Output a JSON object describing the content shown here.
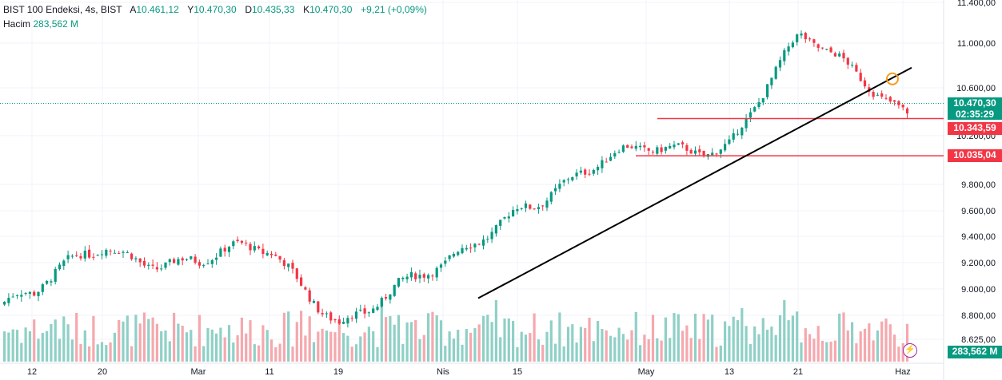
{
  "legend": {
    "symbol": "BIST 100 Endeksi",
    "interval": "4s",
    "exchange": "BIST",
    "open_label": "A",
    "open": "10.461,12",
    "high_label": "Y",
    "high": "10.470,30",
    "low_label": "D",
    "low": "10.435,33",
    "close_label": "K",
    "close": "10.470,30",
    "change": "+9,21 (+0,09%)",
    "volume_label": "Hacim",
    "volume": "283,562 M"
  },
  "price_axis": {
    "labels": [
      "11.400,00",
      "11.000,00",
      "10.600,00",
      "10.200,00",
      "9.800,00",
      "9.600,00",
      "9.400,00",
      "9.200,00",
      "9.000,00",
      "8.800,00",
      "8.625,00"
    ],
    "current_price": "10.470,30",
    "countdown": "02:35:29",
    "level_1": "10.343,59",
    "level_2": "10.035,04",
    "volume_tag": "283,562 M"
  },
  "time_axis": {
    "labels": [
      "12",
      "20",
      "Mar",
      "11",
      "19",
      "Nis",
      "15",
      "May",
      "13",
      "21",
      "Haz"
    ]
  },
  "colors": {
    "up": "#089981",
    "down": "#f23645",
    "up_volume": "#8fd0c6",
    "down_volume": "#f5a8ae",
    "level_line": "#f23645",
    "trendline": "#000000",
    "marker": "#f59d1c"
  },
  "icons": {
    "flash": "lightning-icon"
  },
  "chart_data": {
    "type": "candlestick",
    "price_range": [
      8625,
      11400
    ],
    "anchors": [
      [
        "12",
        8900
      ],
      [
        "20",
        9350
      ],
      [
        "Mar",
        9200
      ],
      [
        "11",
        9250
      ],
      [
        "19",
        8820
      ],
      [
        "Nis",
        9100
      ],
      [
        "15",
        9700
      ],
      [
        "May",
        10050
      ],
      [
        "13",
        10200
      ],
      [
        "21",
        11000
      ],
      [
        "Haz",
        10470
      ]
    ],
    "levels": [
      10343.59,
      10035.04
    ],
    "trendline": {
      "from": [
        "Nis",
        8930
      ],
      "to": [
        "Haz",
        10780
      ]
    },
    "volume_last": 283.562
  }
}
